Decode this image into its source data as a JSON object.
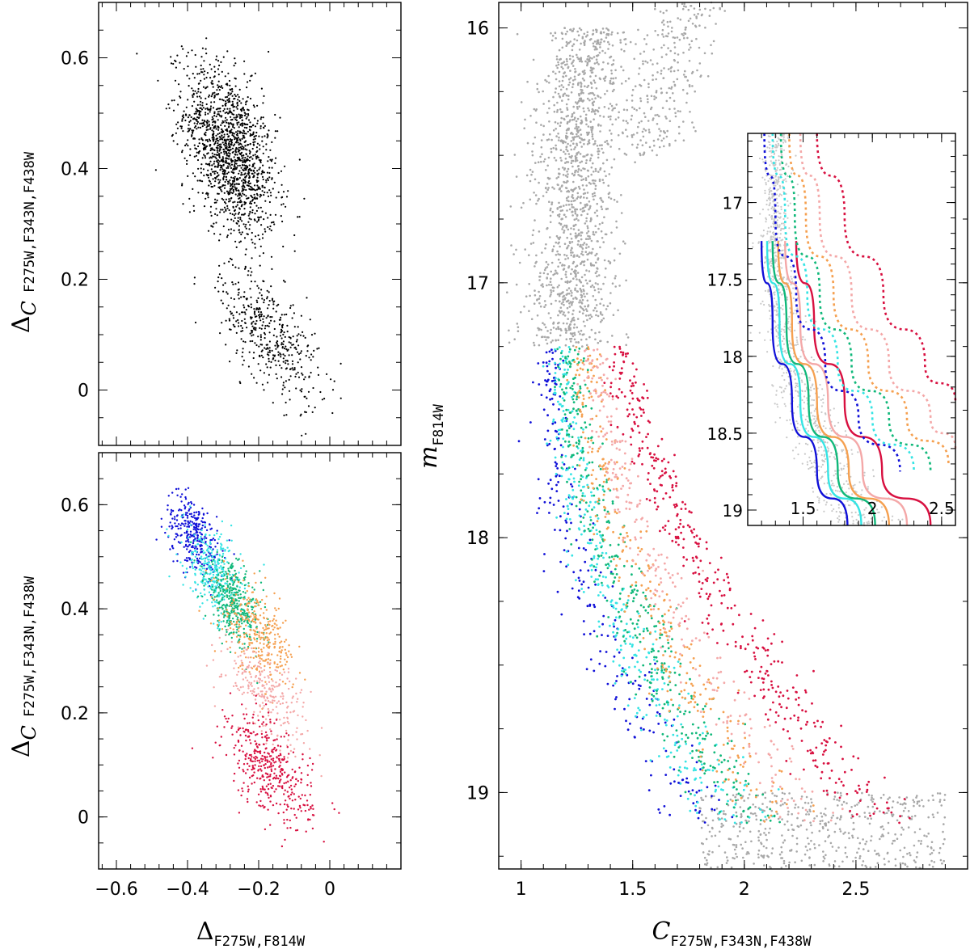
{
  "chart_data": [
    {
      "id": "top-left",
      "type": "scatter",
      "xlim": [
        -0.65,
        0.2
      ],
      "ylim": [
        -0.1,
        0.7
      ],
      "xlabel": "",
      "ylabel": "Δ_C F275W,F343N,F438W",
      "ylabel_main": "Δ",
      "ylabel_c": "C",
      "ylabel_sub": " F275W,F343N,F438W",
      "yticks": [
        0,
        0.2,
        0.4,
        0.6
      ],
      "ytick_labels": [
        "0",
        "0.2",
        "0.4",
        "0.6"
      ],
      "point_color": "#000000",
      "populations": [
        {
          "name": "upper",
          "center": [
            -0.28,
            0.43
          ],
          "spread": [
            0.065,
            0.07
          ],
          "count": 1500,
          "color": "#000000"
        },
        {
          "name": "lower",
          "center": [
            -0.17,
            0.1
          ],
          "spread": [
            0.07,
            0.05
          ],
          "count": 450,
          "color": "#000000"
        }
      ]
    },
    {
      "id": "bottom-left",
      "type": "scatter",
      "xlim": [
        -0.65,
        0.2
      ],
      "ylim": [
        -0.1,
        0.7
      ],
      "xlabel": "Δ_F275W,F814W",
      "xlabel_main": "Δ",
      "xlabel_sub": "F275W,F814W",
      "ylabel": "Δ_C F275W,F343N,F438W",
      "ylabel_main": "Δ",
      "ylabel_c": "C",
      "ylabel_sub": " F275W,F343N,F438W",
      "xticks": [
        -0.6,
        -0.4,
        -0.2,
        0
      ],
      "xtick_labels": [
        "−0.6",
        "−0.4",
        "−0.2",
        "0"
      ],
      "yticks": [
        0,
        0.2,
        0.4,
        0.6
      ],
      "ytick_labels": [
        "0",
        "0.2",
        "0.4",
        "0.6"
      ],
      "series": [
        {
          "name": "blue",
          "color": "#1010d8",
          "center": [
            -0.38,
            0.54
          ],
          "spread": [
            0.04,
            0.035
          ],
          "count": 320
        },
        {
          "name": "cyan",
          "color": "#35e4e4",
          "center": [
            -0.33,
            0.47
          ],
          "spread": [
            0.04,
            0.04
          ],
          "count": 320
        },
        {
          "name": "green",
          "color": "#10b87a",
          "center": [
            -0.27,
            0.41
          ],
          "spread": [
            0.04,
            0.035
          ],
          "count": 380
        },
        {
          "name": "orange",
          "color": "#f5a050",
          "center": [
            -0.2,
            0.35
          ],
          "spread": [
            0.05,
            0.04
          ],
          "count": 320
        },
        {
          "name": "pink",
          "color": "#f4a8a8",
          "center": [
            -0.18,
            0.24
          ],
          "spread": [
            0.06,
            0.04
          ],
          "count": 260
        },
        {
          "name": "red",
          "color": "#d81040",
          "center": [
            -0.17,
            0.09
          ],
          "spread": [
            0.06,
            0.045
          ],
          "count": 420
        }
      ]
    },
    {
      "id": "right-cmd",
      "type": "scatter",
      "xlim": [
        0.9,
        3.0
      ],
      "ylim": [
        19.3,
        15.9
      ],
      "xlabel": "C_F275W,F343N,F438W",
      "xlabel_main": "C",
      "xlabel_sub": "F275W,F343N,F438W",
      "ylabel": "m_F814W",
      "ylabel_main": "m",
      "ylabel_sub": "F814W",
      "xticks": [
        1,
        1.5,
        2,
        2.5
      ],
      "xtick_labels": [
        "1",
        "1.5",
        "2",
        "2.5"
      ],
      "yticks": [
        16,
        17,
        18,
        19
      ],
      "ytick_labels": [
        "16",
        "17",
        "18",
        "19"
      ],
      "gray_color": "#a8a8a8",
      "color_cut_mag": 17.25,
      "series": [
        {
          "name": "blue",
          "color": "#1010d8",
          "offset": -0.07,
          "count": 260
        },
        {
          "name": "cyan",
          "color": "#35e4e4",
          "offset": -0.02,
          "count": 380
        },
        {
          "name": "green",
          "color": "#10b87a",
          "offset": 0.02,
          "count": 420
        },
        {
          "name": "orange",
          "color": "#f5a050",
          "offset": 0.07,
          "count": 300
        },
        {
          "name": "pink",
          "color": "#f4a8a8",
          "offset": 0.12,
          "count": 280
        },
        {
          "name": "red",
          "color": "#d81040",
          "offset": 0.24,
          "count": 420
        }
      ]
    },
    {
      "id": "inset",
      "type": "line",
      "xlim": [
        1.1,
        2.6
      ],
      "ylim": [
        19.1,
        16.55
      ],
      "xticks": [
        1.5,
        2,
        2.5
      ],
      "xtick_labels": [
        "1.5",
        "2",
        "2.5"
      ],
      "yticks": [
        17,
        17.5,
        18,
        18.5,
        19
      ],
      "ytick_labels": [
        "17",
        "17.5",
        "18",
        "18.5",
        "19"
      ],
      "fiducial_lines": [
        {
          "name": "blue",
          "color": "#1010d8",
          "style": "solid",
          "points": [
            [
              1.2,
              17.25
            ],
            [
              1.28,
              17.8
            ],
            [
              1.42,
              18.3
            ],
            [
              1.6,
              18.75
            ],
            [
              1.82,
              19.1
            ]
          ]
        },
        {
          "name": "cyan",
          "color": "#35e4e4",
          "style": "solid",
          "points": [
            [
              1.24,
              17.25
            ],
            [
              1.33,
              17.8
            ],
            [
              1.48,
              18.3
            ],
            [
              1.68,
              18.75
            ],
            [
              1.92,
              19.1
            ]
          ]
        },
        {
          "name": "green",
          "color": "#10b87a",
          "style": "solid",
          "points": [
            [
              1.28,
              17.25
            ],
            [
              1.38,
              17.8
            ],
            [
              1.54,
              18.3
            ],
            [
              1.75,
              18.75
            ],
            [
              2.02,
              19.1
            ]
          ]
        },
        {
          "name": "orange",
          "color": "#f5a050",
          "style": "solid",
          "points": [
            [
              1.32,
              17.25
            ],
            [
              1.42,
              17.8
            ],
            [
              1.6,
              18.3
            ],
            [
              1.83,
              18.75
            ],
            [
              2.12,
              19.1
            ]
          ]
        },
        {
          "name": "pink",
          "color": "#f4a8a8",
          "style": "solid",
          "points": [
            [
              1.37,
              17.25
            ],
            [
              1.48,
              17.8
            ],
            [
              1.68,
              18.3
            ],
            [
              1.93,
              18.75
            ],
            [
              2.25,
              19.1
            ]
          ]
        },
        {
          "name": "red",
          "color": "#d81040",
          "style": "solid",
          "points": [
            [
              1.45,
              17.25
            ],
            [
              1.58,
              17.8
            ],
            [
              1.8,
              18.3
            ],
            [
              2.07,
              18.75
            ],
            [
              2.42,
              19.1
            ]
          ]
        },
        {
          "name": "blue-dotted",
          "color": "#1010d8",
          "style": "dotted",
          "points": [
            [
              1.22,
              16.55
            ],
            [
              1.3,
              17.1
            ],
            [
              1.45,
              17.6
            ],
            [
              1.66,
              18.05
            ],
            [
              1.9,
              18.4
            ],
            [
              2.2,
              18.75
            ]
          ]
        },
        {
          "name": "cyan-dotted",
          "color": "#35e4e4",
          "style": "dotted",
          "points": [
            [
              1.28,
              16.55
            ],
            [
              1.37,
              17.1
            ],
            [
              1.53,
              17.6
            ],
            [
              1.75,
              18.05
            ],
            [
              2.0,
              18.4
            ],
            [
              2.3,
              18.75
            ]
          ]
        },
        {
          "name": "green-dotted",
          "color": "#10b87a",
          "style": "dotted",
          "points": [
            [
              1.34,
              16.55
            ],
            [
              1.44,
              17.1
            ],
            [
              1.62,
              17.6
            ],
            [
              1.85,
              18.05
            ],
            [
              2.12,
              18.4
            ],
            [
              2.42,
              18.75
            ]
          ]
        },
        {
          "name": "orange-dotted",
          "color": "#f5a050",
          "style": "dotted",
          "points": [
            [
              1.4,
              16.55
            ],
            [
              1.52,
              17.1
            ],
            [
              1.72,
              17.6
            ],
            [
              1.97,
              18.05
            ],
            [
              2.25,
              18.4
            ],
            [
              2.55,
              18.7
            ]
          ]
        },
        {
          "name": "pink-dotted",
          "color": "#f4a8a8",
          "style": "dotted",
          "points": [
            [
              1.48,
              16.55
            ],
            [
              1.62,
              17.1
            ],
            [
              1.85,
              17.6
            ],
            [
              2.12,
              18.05
            ],
            [
              2.42,
              18.4
            ],
            [
              2.6,
              18.6
            ]
          ]
        },
        {
          "name": "red-dotted",
          "color": "#d81040",
          "style": "dotted",
          "points": [
            [
              1.6,
              16.55
            ],
            [
              1.8,
              17.1
            ],
            [
              2.08,
              17.6
            ],
            [
              2.38,
              18.05
            ],
            [
              2.6,
              18.3
            ]
          ]
        }
      ]
    }
  ]
}
